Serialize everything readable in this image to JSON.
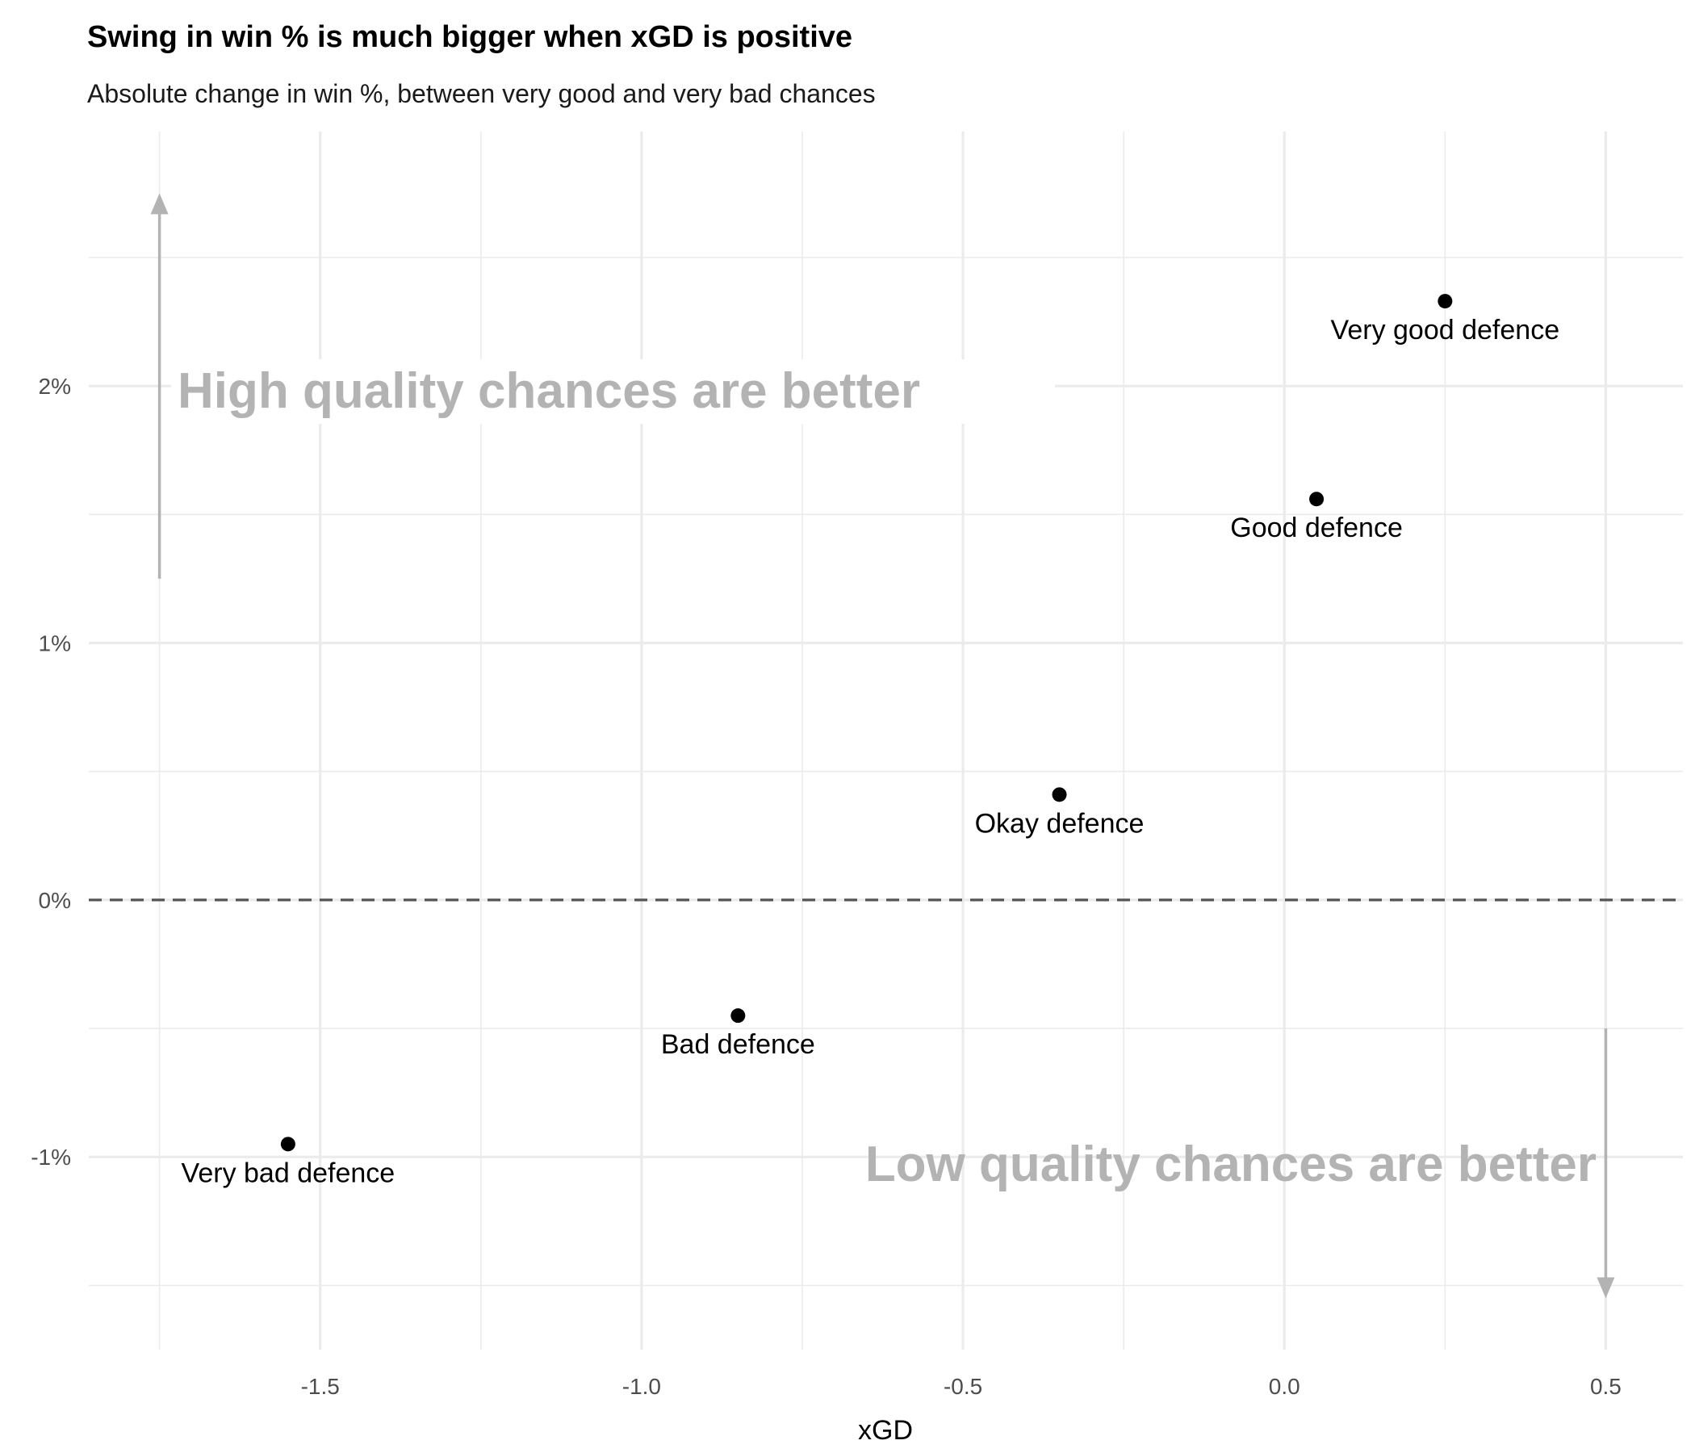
{
  "chart_data": {
    "type": "scatter",
    "title": "Swing in win % is much bigger when xGD is positive",
    "subtitle": "Absolute change in win %, between very good and very bad chances",
    "xlabel": "xGD",
    "ylabel": "",
    "xlim": [
      -1.86,
      0.62
    ],
    "ylim": [
      -1.75,
      2.99
    ],
    "x_ticks": [
      -1.5,
      -1.0,
      -0.5,
      0.0,
      0.5
    ],
    "x_tick_labels": [
      "-1.5",
      "-1.0",
      "-0.5",
      "0.0",
      "0.5"
    ],
    "y_ticks": [
      -1,
      0,
      1,
      2
    ],
    "y_tick_labels": [
      "-1%",
      "0%",
      "1%",
      "2%"
    ],
    "grid": true,
    "reference_line": {
      "y": 0,
      "style": "dashed",
      "color": "#555555"
    },
    "points": [
      {
        "label": "Very bad defence",
        "x": -1.55,
        "y": -0.95
      },
      {
        "label": "Bad defence",
        "x": -0.85,
        "y": -0.45
      },
      {
        "label": "Okay defence",
        "x": -0.35,
        "y": 0.41
      },
      {
        "label": "Good defence",
        "x": 0.05,
        "y": 1.56
      },
      {
        "label": "Very good defence",
        "x": 0.25,
        "y": 2.33
      }
    ],
    "annotations": [
      {
        "text": "High quality chances are better",
        "arrow": {
          "x": -1.75,
          "y_from": 1.25,
          "y_to": 2.75
        }
      },
      {
        "text": "Low quality chances are better",
        "arrow": {
          "x": 0.5,
          "y_from": -0.5,
          "y_to": -1.55
        }
      }
    ],
    "colors": {
      "point": "#000000",
      "annotation": "#b3b3b3",
      "grid": "#ebebeb"
    }
  }
}
